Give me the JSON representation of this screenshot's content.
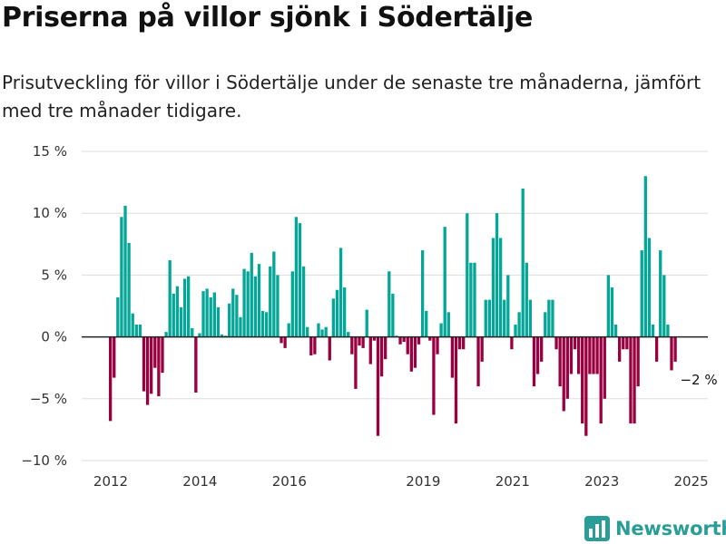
{
  "title": "Priserna på villor sjönk i Södertälje",
  "subtitle": "Prisutveckling för villor i Södertälje under de senaste tre månaderna, jämfört med tre månader tidigare.",
  "brand": {
    "name": "Newsworthy",
    "icon": "newsworthy-logo-icon"
  },
  "colors": {
    "positive": "#03a697",
    "negative": "#98003f",
    "grid": "#dddddd",
    "zero_line": "#222222",
    "brand": "#2a9d97"
  },
  "chart_data": {
    "type": "bar",
    "ylim": [
      -10,
      15
    ],
    "y_ticks": [
      {
        "value": 15,
        "label": "15 %"
      },
      {
        "value": 10,
        "label": "10 %"
      },
      {
        "value": 5,
        "label": "5 %"
      },
      {
        "value": 0,
        "label": "0 %"
      },
      {
        "value": -5,
        "label": "−5 %"
      },
      {
        "value": -10,
        "label": "−10 %"
      }
    ],
    "x_ticks": [
      {
        "year": 2012,
        "label": "2012"
      },
      {
        "year": 2014,
        "label": "2014"
      },
      {
        "year": 2016,
        "label": "2016"
      },
      {
        "year": 2019,
        "label": "2019"
      },
      {
        "year": 2021,
        "label": "2021"
      },
      {
        "year": 2023,
        "label": "2023"
      },
      {
        "year": 2025,
        "label": "2025"
      }
    ],
    "grid": true,
    "annotation": {
      "text": "−2 %",
      "target": "last"
    },
    "series": [
      {
        "values": [
          -6.8,
          -3.3,
          3.2,
          9.7,
          10.6,
          7.6,
          1.9,
          1.0,
          1.0,
          -4.4,
          -5.5,
          -4.6,
          -2.5,
          -4.8,
          -2.9,
          0.4,
          6.2,
          3.5,
          4.1,
          2.4,
          4.7,
          4.9,
          0.7,
          -4.5,
          0.3,
          3.7,
          3.9,
          3.2,
          3.6,
          2.4,
          0.2,
          0.1,
          2.7,
          3.9,
          3.4,
          1.6,
          5.5,
          5.3,
          6.8,
          4.9,
          5.9,
          2.1,
          2.0,
          5.7,
          6.9,
          5.0,
          -0.5,
          -0.9,
          1.1,
          5.3,
          9.7,
          9.2,
          5.7,
          0.8,
          -1.5,
          -1.4,
          1.1,
          0.6,
          0.8,
          -1.9,
          3.1,
          3.8,
          7.2,
          4.0,
          0.4,
          -1.4,
          -4.2,
          -0.7,
          -0.9,
          2.2,
          -2.2,
          -0.3,
          -8.0,
          -3.2,
          -1.8,
          5.3,
          3.5,
          0.1,
          -0.6,
          -0.4,
          -1.4,
          -2.8,
          -2.5,
          -0.6,
          7.0,
          2.1,
          -0.3,
          -6.3,
          -1.4,
          1.1,
          8.9,
          2.0,
          -3.3,
          -7.0,
          -1.0,
          -1.0,
          10.0,
          6.0,
          6.0,
          -4.0,
          -2.0,
          3.0,
          3.0,
          8.0,
          10.0,
          8.0,
          3.0,
          5.0,
          -1.0,
          1.0,
          2.0,
          12.0,
          6.0,
          3.0,
          -4.0,
          -3.0,
          -2.0,
          2.0,
          3.0,
          3.0,
          -1.0,
          -4.0,
          -6.0,
          -5.0,
          -3.0,
          -1.0,
          -3.0,
          -7.0,
          -8.0,
          -3.0,
          -3.0,
          -3.0,
          -7.0,
          -5.0,
          5.0,
          4.0,
          1.0,
          -2.0,
          -1.0,
          -1.0,
          -7.0,
          -7.0,
          -4.0,
          7.0,
          13.0,
          8.0,
          1.0,
          -2.0,
          7.0,
          5.0,
          1.0,
          -2.7,
          -2.0
        ]
      }
    ]
  }
}
